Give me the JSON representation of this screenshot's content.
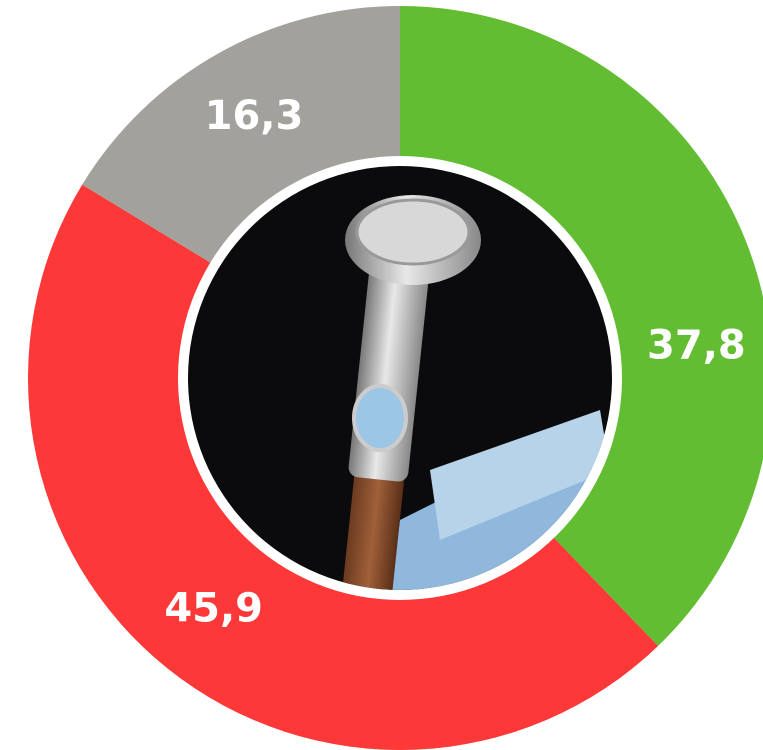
{
  "chart_data": {
    "type": "donut",
    "values": [
      37.8,
      45.9,
      16.3
    ],
    "value_labels": [
      "37,8",
      "45,9",
      "16,3"
    ],
    "colors": [
      "#62bd33",
      "#fd3838",
      "#a3a19c"
    ]
  }
}
